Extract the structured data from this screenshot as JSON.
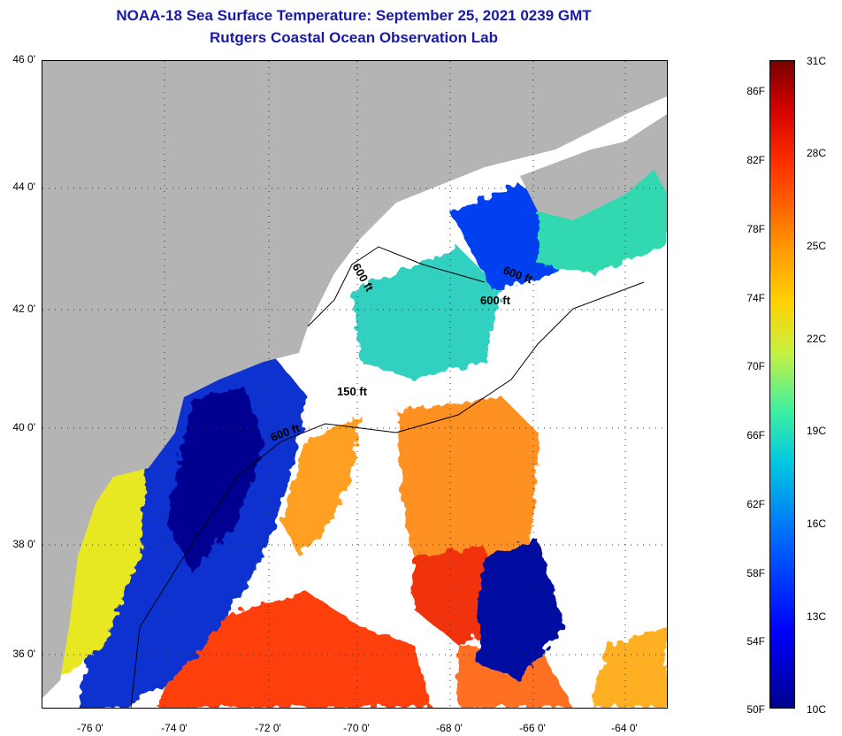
{
  "title": {
    "line1": "NOAA-18 Sea Surface Temperature:  September 25, 2021 0239 GMT",
    "line2": "Rutgers Coastal Ocean Observation Lab"
  },
  "axes": {
    "y_labels": [
      "46 0'",
      "44 0'",
      "42 0'",
      "40 0'",
      "38 0'",
      "36 0'"
    ],
    "x_labels": [
      "-76 0'",
      "-74 0'",
      "-72 0'",
      "-70 0'",
      "-68 0'",
      "-66 0'",
      "-64 0'"
    ]
  },
  "contours": [
    "600 ft",
    "600 ft",
    "600 ft",
    "150 ft",
    "600 ft"
  ],
  "colorbar": {
    "fahrenheit": [
      "86F",
      "82F",
      "78F",
      "74F",
      "70F",
      "66F",
      "62F",
      "58F",
      "54F",
      "50F"
    ],
    "celsius": [
      "31C",
      "28C",
      "25C",
      "22C",
      "19C",
      "16C",
      "13C",
      "10C"
    ]
  },
  "colors": {
    "land": "#b4b4b4",
    "cloud": "#ffffff",
    "title": "#1a1aa8"
  }
}
